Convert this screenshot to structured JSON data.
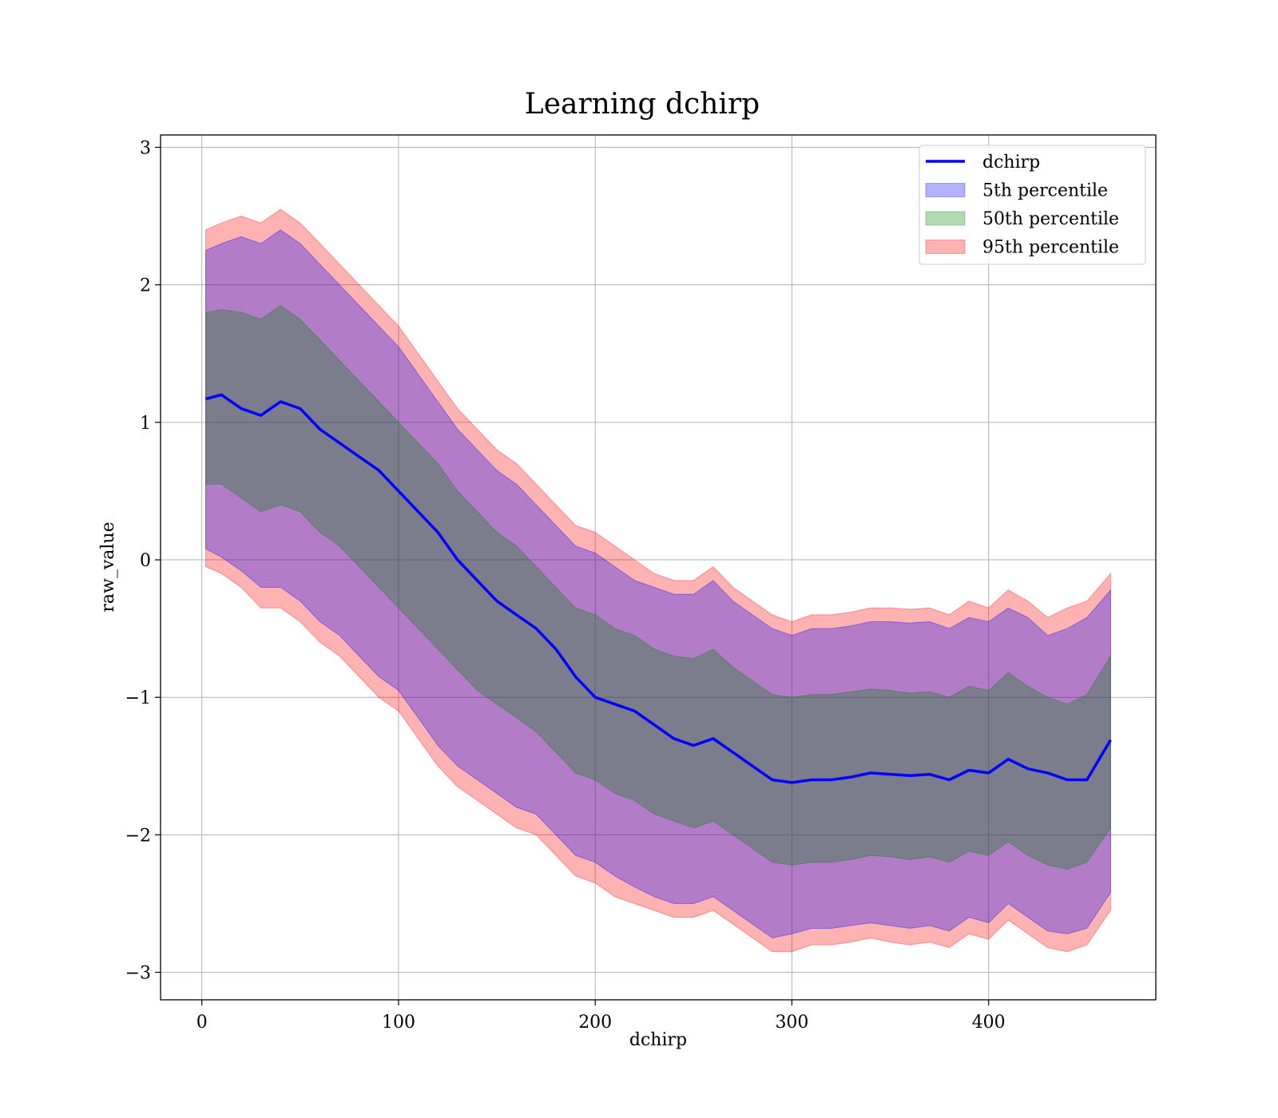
{
  "chart_data": {
    "type": "line",
    "title": "Learning dchirp",
    "xlabel": "dchirp",
    "ylabel": "raw_value",
    "xlim": [
      -21,
      485
    ],
    "ylim": [
      -3.2,
      3.09
    ],
    "xticks": [
      0,
      100,
      200,
      300,
      400
    ],
    "yticks": [
      -3,
      -2,
      -1,
      0,
      1,
      2,
      3
    ],
    "xtick_labels": [
      "0",
      "100",
      "200",
      "300",
      "400"
    ],
    "ytick_labels": [
      "−3",
      "−2",
      "−1",
      "0",
      "1",
      "2",
      "3"
    ],
    "grid": true,
    "legend_position": "upper right",
    "x": [
      2,
      10,
      20,
      30,
      40,
      50,
      60,
      70,
      80,
      90,
      100,
      110,
      120,
      130,
      140,
      150,
      160,
      170,
      180,
      190,
      200,
      210,
      220,
      230,
      240,
      250,
      260,
      270,
      280,
      290,
      300,
      310,
      320,
      330,
      340,
      350,
      360,
      370,
      380,
      390,
      400,
      410,
      420,
      430,
      440,
      450,
      462
    ],
    "series": [
      {
        "name": "dchirp",
        "type": "line",
        "color": "#0000ff",
        "values": [
          1.17,
          1.2,
          1.1,
          1.05,
          1.15,
          1.1,
          0.95,
          0.85,
          0.75,
          0.65,
          0.5,
          0.35,
          0.2,
          0.0,
          -0.15,
          -0.3,
          -0.4,
          -0.5,
          -0.65,
          -0.85,
          -1.0,
          -1.05,
          -1.1,
          -1.2,
          -1.3,
          -1.35,
          -1.3,
          -1.4,
          -1.5,
          -1.6,
          -1.62,
          -1.6,
          -1.6,
          -1.58,
          -1.55,
          -1.56,
          -1.57,
          -1.56,
          -1.6,
          -1.53,
          -1.55,
          -1.45,
          -1.52,
          -1.55,
          -1.6,
          -1.6,
          -1.31
        ]
      },
      {
        "name": "95th percentile",
        "type": "band",
        "color": "#ff0000",
        "opacity": 0.3,
        "upper": [
          2.4,
          2.45,
          2.5,
          2.45,
          2.55,
          2.45,
          2.3,
          2.15,
          2.0,
          1.85,
          1.7,
          1.5,
          1.3,
          1.1,
          0.95,
          0.8,
          0.7,
          0.55,
          0.4,
          0.25,
          0.2,
          0.1,
          0.0,
          -0.1,
          -0.15,
          -0.15,
          -0.05,
          -0.2,
          -0.3,
          -0.4,
          -0.45,
          -0.4,
          -0.4,
          -0.38,
          -0.35,
          -0.35,
          -0.36,
          -0.35,
          -0.4,
          -0.3,
          -0.35,
          -0.22,
          -0.3,
          -0.42,
          -0.35,
          -0.3,
          -0.1
        ],
        "lower": [
          -0.05,
          -0.1,
          -0.2,
          -0.35,
          -0.35,
          -0.45,
          -0.6,
          -0.7,
          -0.85,
          -1.0,
          -1.1,
          -1.3,
          -1.5,
          -1.65,
          -1.75,
          -1.85,
          -1.95,
          -2.0,
          -2.15,
          -2.3,
          -2.35,
          -2.45,
          -2.5,
          -2.55,
          -2.6,
          -2.6,
          -2.55,
          -2.65,
          -2.75,
          -2.85,
          -2.85,
          -2.8,
          -2.8,
          -2.78,
          -2.75,
          -2.78,
          -2.8,
          -2.78,
          -2.82,
          -2.72,
          -2.76,
          -2.62,
          -2.72,
          -2.82,
          -2.85,
          -2.8,
          -2.55
        ]
      },
      {
        "name": "5th percentile",
        "type": "band",
        "color": "#0000ff",
        "opacity": 0.3,
        "upper": [
          2.25,
          2.3,
          2.35,
          2.3,
          2.4,
          2.3,
          2.15,
          2.0,
          1.85,
          1.7,
          1.55,
          1.35,
          1.15,
          0.95,
          0.8,
          0.65,
          0.55,
          0.4,
          0.25,
          0.1,
          0.05,
          -0.05,
          -0.15,
          -0.2,
          -0.25,
          -0.25,
          -0.15,
          -0.3,
          -0.4,
          -0.5,
          -0.55,
          -0.5,
          -0.5,
          -0.48,
          -0.45,
          -0.45,
          -0.46,
          -0.45,
          -0.5,
          -0.42,
          -0.45,
          -0.35,
          -0.42,
          -0.55,
          -0.5,
          -0.42,
          -0.22
        ],
        "lower": [
          0.08,
          0.02,
          -0.08,
          -0.2,
          -0.2,
          -0.3,
          -0.45,
          -0.55,
          -0.7,
          -0.85,
          -0.95,
          -1.15,
          -1.35,
          -1.5,
          -1.6,
          -1.7,
          -1.8,
          -1.85,
          -2.0,
          -2.15,
          -2.2,
          -2.3,
          -2.38,
          -2.45,
          -2.5,
          -2.5,
          -2.45,
          -2.55,
          -2.65,
          -2.75,
          -2.72,
          -2.68,
          -2.68,
          -2.66,
          -2.64,
          -2.66,
          -2.68,
          -2.66,
          -2.7,
          -2.6,
          -2.64,
          -2.5,
          -2.6,
          -2.7,
          -2.72,
          -2.68,
          -2.42
        ]
      },
      {
        "name": "50th percentile",
        "type": "band",
        "color": "#008000",
        "opacity": 0.3,
        "upper": [
          1.8,
          1.82,
          1.8,
          1.75,
          1.85,
          1.75,
          1.6,
          1.45,
          1.3,
          1.15,
          1.0,
          0.85,
          0.7,
          0.5,
          0.35,
          0.2,
          0.1,
          -0.05,
          -0.2,
          -0.35,
          -0.4,
          -0.5,
          -0.55,
          -0.65,
          -0.7,
          -0.72,
          -0.65,
          -0.78,
          -0.88,
          -0.98,
          -1.0,
          -0.98,
          -0.98,
          -0.96,
          -0.94,
          -0.95,
          -0.97,
          -0.96,
          -1.0,
          -0.92,
          -0.95,
          -0.82,
          -0.92,
          -1.0,
          -1.05,
          -0.98,
          -0.7
        ],
        "lower": [
          0.55,
          0.55,
          0.45,
          0.35,
          0.4,
          0.35,
          0.2,
          0.1,
          -0.05,
          -0.2,
          -0.35,
          -0.5,
          -0.65,
          -0.8,
          -0.95,
          -1.05,
          -1.15,
          -1.25,
          -1.4,
          -1.55,
          -1.6,
          -1.7,
          -1.75,
          -1.85,
          -1.9,
          -1.95,
          -1.9,
          -2.0,
          -2.1,
          -2.2,
          -2.22,
          -2.2,
          -2.2,
          -2.18,
          -2.15,
          -2.16,
          -2.18,
          -2.16,
          -2.2,
          -2.12,
          -2.15,
          -2.05,
          -2.15,
          -2.22,
          -2.25,
          -2.2,
          -1.95
        ]
      }
    ],
    "legend": [
      {
        "label": "dchirp",
        "kind": "line",
        "color": "#0000ff"
      },
      {
        "label": "5th percentile",
        "kind": "patch",
        "color": "#0000ff"
      },
      {
        "label": "50th percentile",
        "kind": "patch",
        "color": "#008000"
      },
      {
        "label": "95th percentile",
        "kind": "patch",
        "color": "#ff0000"
      }
    ]
  }
}
